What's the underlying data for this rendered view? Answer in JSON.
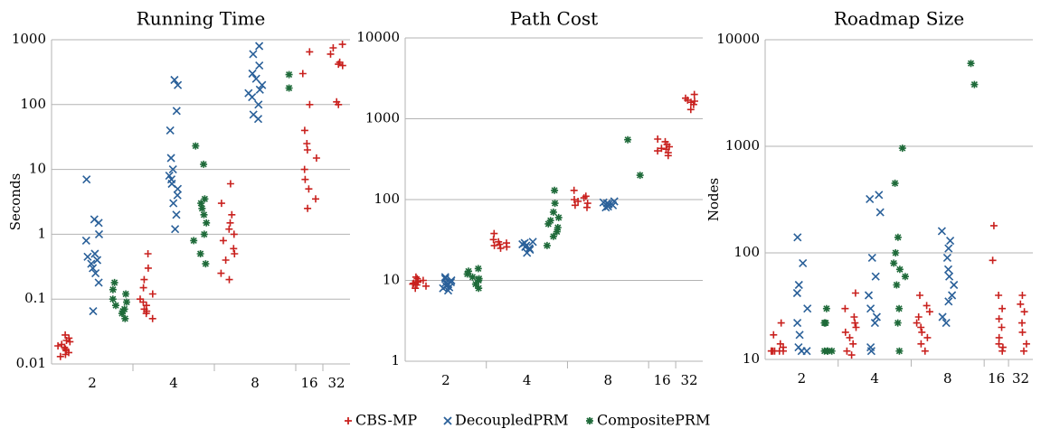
{
  "legend": [
    {
      "name": "CBS-MP",
      "color": "#c9211e",
      "marker": "plus"
    },
    {
      "name": "DecoupledPRM",
      "color": "#2a6099",
      "marker": "cross"
    },
    {
      "name": "CompositePRM",
      "color": "#1e6a39",
      "marker": "asterisk"
    }
  ],
  "chart_data": [
    {
      "type": "scatter",
      "title": "Running Time",
      "ylabel": "Seconds",
      "log_scale": true,
      "grid": true,
      "categories": [
        "2",
        "4",
        "8",
        "16",
        "32"
      ],
      "ylim": [
        0.01,
        1000
      ],
      "yticks": [
        0.01,
        0.1,
        1,
        10,
        100,
        1000
      ],
      "series": [
        {
          "values": [
            [
              0.013,
              0.015,
              0.016,
              0.018,
              0.02,
              0.022,
              0.025,
              0.028,
              0.017,
              0.014,
              0.019,
              0.023
            ],
            [
              0.05,
              0.06,
              0.07,
              0.08,
              0.1,
              0.12,
              0.15,
              0.2,
              0.3,
              0.5,
              0.065,
              0.09
            ],
            [
              0.2,
              0.25,
              0.4,
              0.6,
              0.8,
              1,
              1.5,
              2,
              3,
              6,
              0.5,
              1.2
            ],
            [
              2.5,
              3.5,
              5,
              7,
              10,
              15,
              25,
              40,
              100,
              300,
              650,
              20
            ],
            [
              100,
              110,
              400,
              450,
              600,
              750,
              850,
              420
            ]
          ]
        },
        {
          "values": [
            [
              0.065,
              0.18,
              0.25,
              0.3,
              0.35,
              0.4,
              0.5,
              0.8,
              1,
              1.5,
              1.7,
              7,
              0.45
            ],
            [
              1.2,
              2,
              3,
              4,
              5,
              6,
              7,
              8,
              10,
              15,
              40,
              80,
              200,
              240
            ],
            [
              60,
              70,
              100,
              130,
              150,
              170,
              200,
              250,
              300,
              400,
              600,
              800
            ],
            [],
            []
          ]
        },
        {
          "values": [
            [
              0.05,
              0.06,
              0.07,
              0.08,
              0.09,
              0.1,
              0.12,
              0.14,
              0.18,
              0.065
            ],
            [
              0.35,
              0.5,
              0.8,
              1,
              1.5,
              2,
              2.5,
              3,
              3.5,
              12,
              23
            ],
            [
              180,
              290
            ],
            [],
            []
          ]
        }
      ]
    },
    {
      "type": "scatter",
      "title": "Path Cost",
      "log_scale": true,
      "grid": true,
      "categories": [
        "2",
        "4",
        "8",
        "16",
        "32"
      ],
      "ylim": [
        1,
        10000
      ],
      "yticks": [
        1,
        10,
        100,
        1000,
        10000
      ],
      "series": [
        {
          "values": [
            [
              8,
              8.5,
              9,
              9.5,
              10,
              10.5,
              11,
              9.2,
              8.8,
              9.8
            ],
            [
              25,
              26,
              27,
              28,
              29,
              30,
              32,
              38
            ],
            [
              80,
              85,
              90,
              95,
              100,
              105,
              110,
              130
            ],
            [
              350,
              380,
              400,
              420,
              450,
              480,
              520,
              560,
              430
            ],
            [
              1300,
              1500,
              1600,
              1700,
              1800,
              2000,
              1650
            ]
          ]
        },
        {
          "values": [
            [
              7.5,
              8,
              8.5,
              9,
              9.5,
              10,
              10.5,
              11,
              8.2,
              9.3
            ],
            [
              22,
              24,
              25,
              26,
              27,
              28,
              30,
              29
            ],
            [
              80,
              82,
              85,
              88,
              90,
              92,
              95
            ],
            [],
            []
          ]
        },
        {
          "values": [
            [
              8,
              9,
              10,
              11,
              12,
              13,
              14,
              10.5
            ],
            [
              27,
              35,
              40,
              45,
              50,
              55,
              60,
              70,
              90,
              130
            ],
            [
              200,
              550
            ],
            [],
            []
          ]
        }
      ]
    },
    {
      "type": "scatter",
      "title": "Roadmap Size",
      "ylabel": "Nodes",
      "log_scale": true,
      "grid": true,
      "categories": [
        "2",
        "4",
        "8",
        "16",
        "32"
      ],
      "ylim": [
        10,
        10000
      ],
      "yticks": [
        10,
        100,
        1000,
        10000
      ],
      "series": [
        {
          "values": [
            [
              12,
              12,
              12,
              12,
              13,
              14,
              17,
              22,
              12,
              12
            ],
            [
              11,
              12,
              14,
              16,
              18,
              20,
              22,
              25,
              30,
              42
            ],
            [
              12,
              14,
              16,
              18,
              20,
              22,
              25,
              28,
              32,
              40
            ],
            [
              12,
              13,
              14,
              16,
              20,
              24,
              30,
              40,
              85,
              180
            ],
            [
              12,
              14,
              18,
              22,
              28,
              33,
              40
            ]
          ]
        },
        {
          "values": [
            [
              12,
              12,
              13,
              17,
              22,
              30,
              42,
              50,
              80,
              140
            ],
            [
              12,
              13,
              22,
              25,
              30,
              40,
              60,
              90,
              240,
              320,
              350
            ],
            [
              22,
              25,
              35,
              40,
              50,
              60,
              70,
              90,
              110,
              130,
              160
            ],
            [],
            []
          ]
        },
        {
          "values": [
            [
              12,
              12,
              12,
              12,
              22,
              22,
              22,
              30
            ],
            [
              12,
              22,
              30,
              50,
              60,
              70,
              80,
              100,
              140,
              450,
              960
            ],
            [
              3800,
              6000
            ],
            [],
            []
          ]
        }
      ]
    }
  ]
}
